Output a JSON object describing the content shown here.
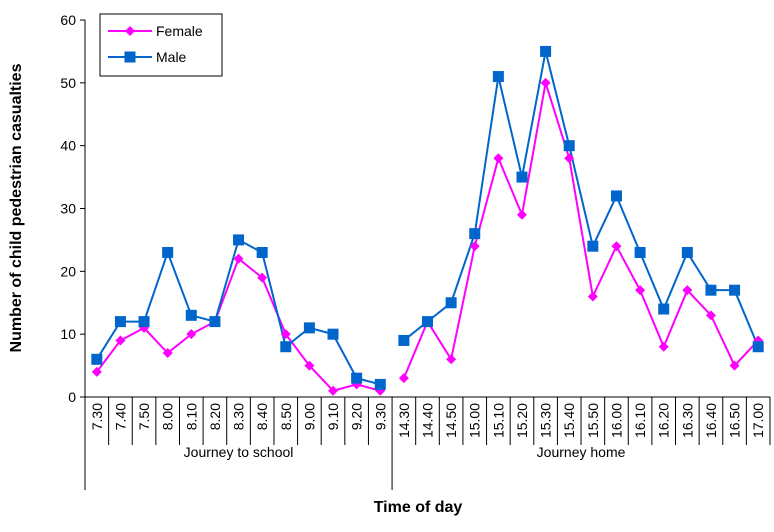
{
  "chart_data": {
    "type": "line",
    "xlabel": "Time of day",
    "ylabel": "Number of child pedestrian casualties",
    "ylim": [
      0,
      60
    ],
    "yticks": [
      0,
      10,
      20,
      30,
      40,
      50,
      60
    ],
    "grid": false,
    "legend_position": "top-left",
    "categories": [
      "7.30",
      "7.40",
      "7.50",
      "8.00",
      "8.10",
      "8.20",
      "8.30",
      "8.40",
      "8.50",
      "9.00",
      "9.10",
      "9.20",
      "9.30",
      "14.30",
      "14.40",
      "14.50",
      "15.00",
      "15.10",
      "15.20",
      "15.30",
      "15.40",
      "15.50",
      "16.00",
      "16.10",
      "16.20",
      "16.30",
      "16.40",
      "16.50",
      "17.00"
    ],
    "groups": [
      {
        "label": "Journey to school",
        "start": 0,
        "end": 12
      },
      {
        "label": "Journey home",
        "start": 13,
        "end": 28
      }
    ],
    "series": [
      {
        "name": "Female",
        "color": "#ff00ff",
        "marker": "diamond",
        "values": [
          4,
          9,
          11,
          7,
          10,
          12,
          22,
          19,
          10,
          5,
          1,
          2,
          1,
          3,
          12,
          6,
          24,
          38,
          29,
          50,
          38,
          16,
          24,
          17,
          8,
          17,
          13,
          5,
          9
        ]
      },
      {
        "name": "Male",
        "color": "#0066cc",
        "marker": "square",
        "values": [
          6,
          12,
          12,
          23,
          13,
          12,
          25,
          23,
          8,
          11,
          10,
          3,
          2,
          9,
          12,
          15,
          26,
          51,
          35,
          55,
          40,
          24,
          32,
          23,
          14,
          23,
          17,
          17,
          8
        ]
      }
    ]
  }
}
